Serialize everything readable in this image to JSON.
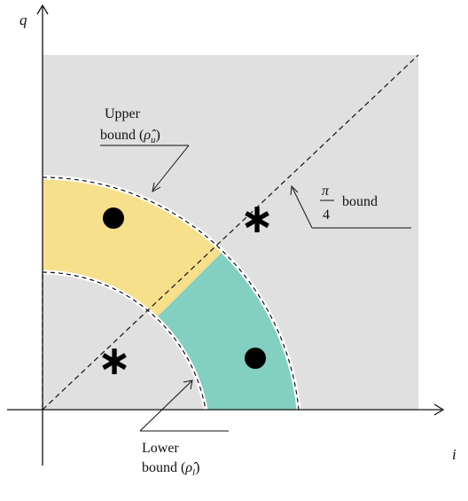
{
  "axes": {
    "x_label": "i",
    "y_label": "q"
  },
  "annotations": {
    "upper_line1": "Upper",
    "upper_line2": "bound (",
    "upper_symbol": "ρ̂",
    "upper_sub": "u",
    "upper_close": ")",
    "lower_line1": "Lower",
    "lower_line2": "bound (",
    "lower_symbol": "ρ̂",
    "lower_sub": "l",
    "lower_close": ")",
    "pi_num": "π",
    "pi_den": "4",
    "pi_word": "bound"
  },
  "markers": {
    "star_symbol": "∗"
  },
  "colors": {
    "background_region": "#e0e0e0",
    "upper_ring": "#f6e08c",
    "lower_ring": "#83cfc2",
    "dot": "#000000"
  }
}
